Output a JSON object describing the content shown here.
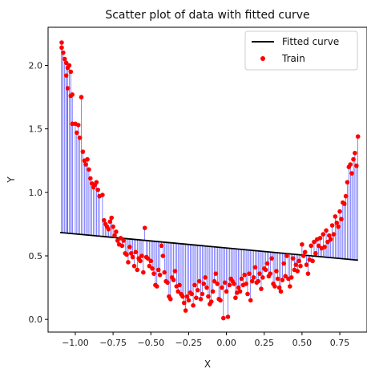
{
  "chart_data": {
    "type": "scatter",
    "title": "Scatter plot of data with fitted curve",
    "xlabel": "X",
    "ylabel": "Y",
    "xlim": [
      -1.18,
      0.93
    ],
    "ylim": [
      -0.1,
      2.3
    ],
    "x_ticks": [
      -1.0,
      -0.75,
      -0.5,
      -0.25,
      0.0,
      0.25,
      0.5,
      0.75
    ],
    "x_tick_labels": [
      "−1.00",
      "−0.75",
      "−0.50",
      "−0.25",
      "0.00",
      "0.25",
      "0.50",
      "0.75"
    ],
    "y_ticks": [
      0.0,
      0.5,
      1.0,
      1.5,
      2.0
    ],
    "y_tick_labels": [
      "0.0",
      "0.5",
      "1.0",
      "1.5",
      "2.0"
    ],
    "grid": false,
    "legend_position": "top-right",
    "colors": {
      "fitted": "#000000",
      "train": "#ff0000",
      "residual": "#0000ff"
    },
    "series": [
      {
        "name": "Fitted curve",
        "kind": "line",
        "x": [
          -1.1,
          0.87
        ],
        "y": [
          0.684,
          0.466
        ]
      },
      {
        "name": "Train",
        "kind": "scatter",
        "points": [
          [
            -1.09,
            2.18
          ],
          [
            -1.09,
            2.14
          ],
          [
            -1.08,
            2.1
          ],
          [
            -1.07,
            2.05
          ],
          [
            -1.06,
            2.02
          ],
          [
            -1.05,
            1.98
          ],
          [
            -1.04,
            2.0
          ],
          [
            -1.06,
            1.92
          ],
          [
            -1.03,
            1.95
          ],
          [
            -1.05,
            1.82
          ],
          [
            -1.03,
            1.76
          ],
          [
            -1.02,
            1.77
          ],
          [
            -1.02,
            1.54
          ],
          [
            -1.0,
            1.54
          ],
          [
            -0.99,
            1.47
          ],
          [
            -0.98,
            1.53
          ],
          [
            -0.97,
            1.43
          ],
          [
            -0.96,
            1.75
          ],
          [
            -0.95,
            1.32
          ],
          [
            -0.94,
            1.25
          ],
          [
            -0.93,
            1.22
          ],
          [
            -0.92,
            1.26
          ],
          [
            -0.91,
            1.18
          ],
          [
            -0.9,
            1.11
          ],
          [
            -0.89,
            1.07
          ],
          [
            -0.88,
            1.04
          ],
          [
            -0.87,
            1.06
          ],
          [
            -0.86,
            1.08
          ],
          [
            -0.85,
            1.02
          ],
          [
            -0.84,
            0.97
          ],
          [
            -0.82,
            0.98
          ],
          [
            -0.81,
            0.78
          ],
          [
            -0.8,
            0.75
          ],
          [
            -0.79,
            0.73
          ],
          [
            -0.78,
            0.71
          ],
          [
            -0.77,
            0.77
          ],
          [
            -0.76,
            0.8
          ],
          [
            -0.75,
            0.73
          ],
          [
            -0.74,
            0.66
          ],
          [
            -0.73,
            0.69
          ],
          [
            -0.72,
            0.62
          ],
          [
            -0.71,
            0.59
          ],
          [
            -0.7,
            0.64
          ],
          [
            -0.69,
            0.58
          ],
          [
            -0.68,
            0.62
          ],
          [
            -0.67,
            0.52
          ],
          [
            -0.66,
            0.51
          ],
          [
            -0.65,
            0.45
          ],
          [
            -0.64,
            0.57
          ],
          [
            -0.63,
            0.52
          ],
          [
            -0.62,
            0.49
          ],
          [
            -0.61,
            0.42
          ],
          [
            -0.6,
            0.53
          ],
          [
            -0.59,
            0.39
          ],
          [
            -0.58,
            0.48
          ],
          [
            -0.57,
            0.46
          ],
          [
            -0.56,
            0.5
          ],
          [
            -0.55,
            0.37
          ],
          [
            -0.54,
            0.72
          ],
          [
            -0.53,
            0.49
          ],
          [
            -0.52,
            0.48
          ],
          [
            -0.51,
            0.42
          ],
          [
            -0.5,
            0.46
          ],
          [
            -0.49,
            0.4
          ],
          [
            -0.48,
            0.36
          ],
          [
            -0.47,
            0.27
          ],
          [
            -0.46,
            0.26
          ],
          [
            -0.45,
            0.39
          ],
          [
            -0.44,
            0.35
          ],
          [
            -0.43,
            0.58
          ],
          [
            -0.42,
            0.5
          ],
          [
            -0.41,
            0.37
          ],
          [
            -0.4,
            0.3
          ],
          [
            -0.39,
            0.29
          ],
          [
            -0.38,
            0.18
          ],
          [
            -0.37,
            0.16
          ],
          [
            -0.36,
            0.33
          ],
          [
            -0.35,
            0.31
          ],
          [
            -0.34,
            0.38
          ],
          [
            -0.33,
            0.26
          ],
          [
            -0.32,
            0.22
          ],
          [
            -0.31,
            0.27
          ],
          [
            -0.3,
            0.2
          ],
          [
            -0.29,
            0.18
          ],
          [
            -0.28,
            0.13
          ],
          [
            -0.27,
            0.07
          ],
          [
            -0.26,
            0.18
          ],
          [
            -0.25,
            0.15
          ],
          [
            -0.24,
            0.21
          ],
          [
            -0.23,
            0.2
          ],
          [
            -0.22,
            0.11
          ],
          [
            -0.21,
            0.27
          ],
          [
            -0.2,
            0.17
          ],
          [
            -0.19,
            0.23
          ],
          [
            -0.18,
            0.3
          ],
          [
            -0.17,
            0.16
          ],
          [
            -0.16,
            0.2
          ],
          [
            -0.15,
            0.28
          ],
          [
            -0.14,
            0.33
          ],
          [
            -0.13,
            0.25
          ],
          [
            -0.12,
            0.18
          ],
          [
            -0.11,
            0.12
          ],
          [
            -0.1,
            0.14
          ],
          [
            -0.09,
            0.22
          ],
          [
            -0.08,
            0.3
          ],
          [
            -0.07,
            0.36
          ],
          [
            -0.06,
            0.28
          ],
          [
            -0.05,
            0.16
          ],
          [
            -0.04,
            0.15
          ],
          [
            -0.03,
            0.25
          ],
          [
            -0.02,
            0.01
          ],
          [
            -0.01,
            0.29
          ],
          [
            0.0,
            0.22
          ],
          [
            0.01,
            0.02
          ],
          [
            0.02,
            0.27
          ],
          [
            0.03,
            0.32
          ],
          [
            0.04,
            0.3
          ],
          [
            0.05,
            0.28
          ],
          [
            0.06,
            0.17
          ],
          [
            0.07,
            0.21
          ],
          [
            0.08,
            0.25
          ],
          [
            0.09,
            0.22
          ],
          [
            0.1,
            0.32
          ],
          [
            0.11,
            0.27
          ],
          [
            0.12,
            0.35
          ],
          [
            0.13,
            0.28
          ],
          [
            0.14,
            0.2
          ],
          [
            0.15,
            0.36
          ],
          [
            0.16,
            0.15
          ],
          [
            0.17,
            0.3
          ],
          [
            0.18,
            0.33
          ],
          [
            0.19,
            0.41
          ],
          [
            0.2,
            0.29
          ],
          [
            0.21,
            0.3
          ],
          [
            0.22,
            0.36
          ],
          [
            0.23,
            0.24
          ],
          [
            0.24,
            0.33
          ],
          [
            0.25,
            0.4
          ],
          [
            0.26,
            0.39
          ],
          [
            0.27,
            0.44
          ],
          [
            0.28,
            0.34
          ],
          [
            0.29,
            0.36
          ],
          [
            0.3,
            0.48
          ],
          [
            0.31,
            0.28
          ],
          [
            0.32,
            0.26
          ],
          [
            0.33,
            0.38
          ],
          [
            0.34,
            0.32
          ],
          [
            0.35,
            0.25
          ],
          [
            0.36,
            0.22
          ],
          [
            0.37,
            0.31
          ],
          [
            0.38,
            0.44
          ],
          [
            0.39,
            0.34
          ],
          [
            0.4,
            0.5
          ],
          [
            0.41,
            0.32
          ],
          [
            0.42,
            0.26
          ],
          [
            0.43,
            0.33
          ],
          [
            0.44,
            0.48
          ],
          [
            0.45,
            0.39
          ],
          [
            0.46,
            0.43
          ],
          [
            0.47,
            0.38
          ],
          [
            0.48,
            0.46
          ],
          [
            0.49,
            0.42
          ],
          [
            0.5,
            0.59
          ],
          [
            0.51,
            0.5
          ],
          [
            0.52,
            0.53
          ],
          [
            0.53,
            0.43
          ],
          [
            0.54,
            0.36
          ],
          [
            0.55,
            0.47
          ],
          [
            0.56,
            0.58
          ],
          [
            0.57,
            0.46
          ],
          [
            0.58,
            0.61
          ],
          [
            0.59,
            0.52
          ],
          [
            0.6,
            0.63
          ],
          [
            0.61,
            0.58
          ],
          [
            0.62,
            0.64
          ],
          [
            0.63,
            0.56
          ],
          [
            0.64,
            0.67
          ],
          [
            0.65,
            0.57
          ],
          [
            0.66,
            0.7
          ],
          [
            0.67,
            0.61
          ],
          [
            0.68,
            0.66
          ],
          [
            0.69,
            0.63
          ],
          [
            0.7,
            0.74
          ],
          [
            0.71,
            0.67
          ],
          [
            0.72,
            0.81
          ],
          [
            0.73,
            0.76
          ],
          [
            0.74,
            0.73
          ],
          [
            0.75,
            0.85
          ],
          [
            0.76,
            0.79
          ],
          [
            0.77,
            0.92
          ],
          [
            0.78,
            0.91
          ],
          [
            0.79,
            0.97
          ],
          [
            0.8,
            1.08
          ],
          [
            0.81,
            1.2
          ],
          [
            0.82,
            1.22
          ],
          [
            0.83,
            1.15
          ],
          [
            0.84,
            1.26
          ],
          [
            0.85,
            1.31
          ],
          [
            0.86,
            1.21
          ],
          [
            0.87,
            1.44
          ]
        ]
      }
    ],
    "legend": [
      {
        "label": "Fitted curve",
        "marker": "line"
      },
      {
        "label": "Train",
        "marker": "dot"
      }
    ]
  }
}
